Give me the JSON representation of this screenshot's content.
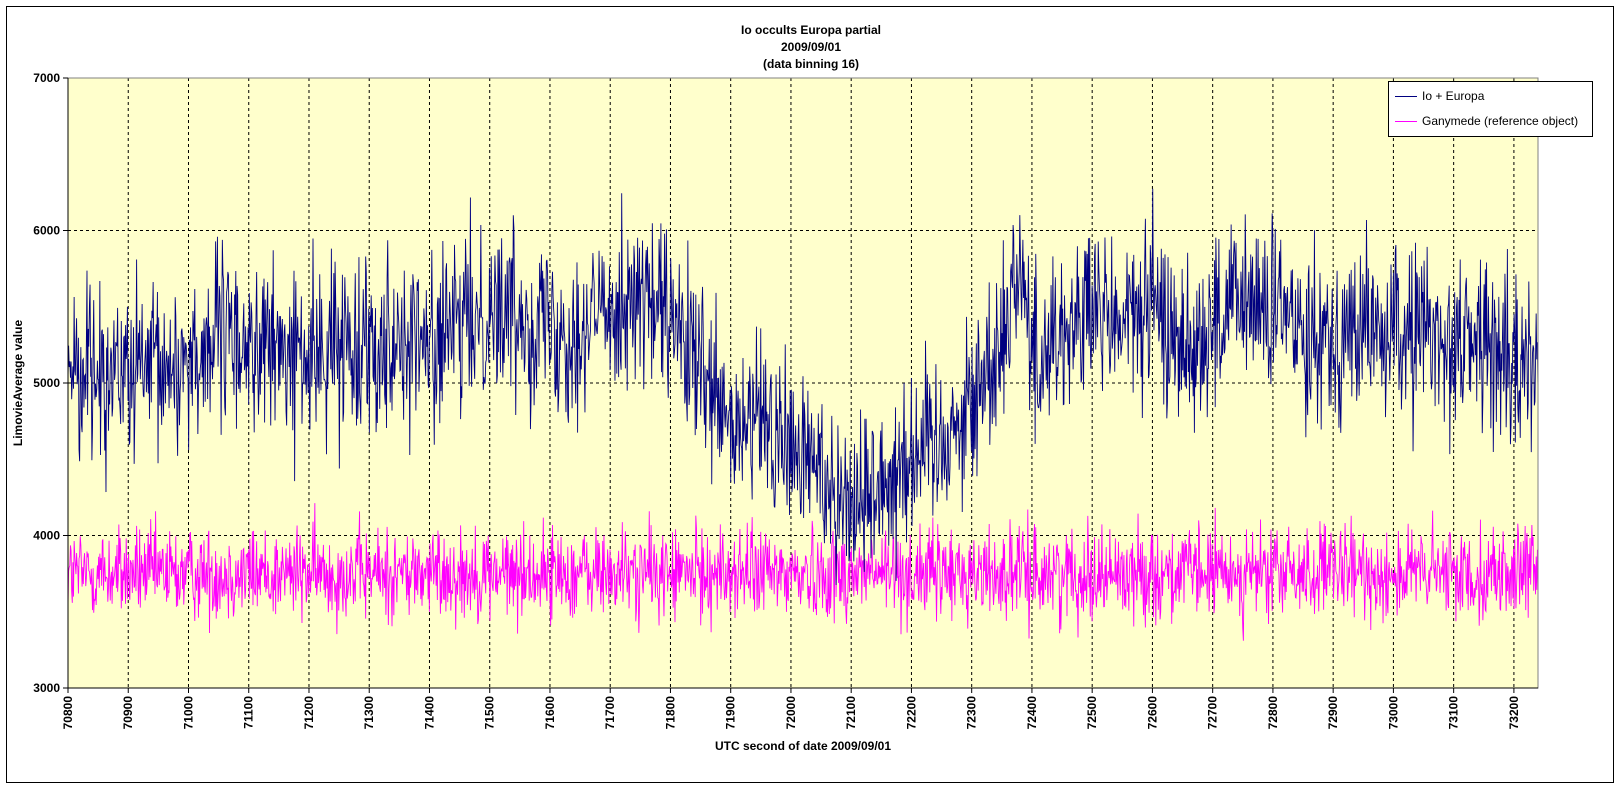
{
  "chart_data": {
    "type": "line",
    "title_lines": [
      "Io occults Europa partial",
      "2009/09/01",
      "(data binning 16)"
    ],
    "xlabel": "UTC second  of date 2009/09/01",
    "ylabel": "LimovieAverage value",
    "xlim": [
      70800,
      73240
    ],
    "ylim": [
      3000,
      7000
    ],
    "x_ticks": [
      70800,
      70900,
      71000,
      71100,
      71200,
      71300,
      71400,
      71500,
      71600,
      71700,
      71800,
      71900,
      72000,
      72100,
      72200,
      72300,
      72400,
      72500,
      72600,
      72700,
      72800,
      72900,
      73000,
      73100,
      73200
    ],
    "x_tick_labels": [
      "70800",
      "70900",
      "71000",
      "71100",
      "71200",
      "71300",
      "71400",
      "71500",
      "71600",
      "71700",
      "71800",
      "71900",
      "72000",
      "72100",
      "72200",
      "72300",
      "72400",
      "72500",
      "72600",
      "72700",
      "72800",
      "72900",
      "73000",
      "73100",
      "73200"
    ],
    "y_ticks": [
      3000,
      4000,
      5000,
      6000,
      7000
    ],
    "y_tick_labels": [
      "3000",
      "4000",
      "5000",
      "6000",
      "7000"
    ],
    "grid": true,
    "legend": "top-right",
    "plot_background": "#ffffcc",
    "series": [
      {
        "name": "Io  + Europa",
        "color": "#000080",
        "x": [
          70800,
          70850,
          70900,
          70950,
          71000,
          71050,
          71100,
          71150,
          71200,
          71250,
          71300,
          71350,
          71400,
          71450,
          71500,
          71550,
          71600,
          71650,
          71700,
          71750,
          71800,
          71850,
          71900,
          71950,
          72000,
          72050,
          72100,
          72150,
          72200,
          72250,
          72300,
          72350,
          72380,
          72400,
          72450,
          72500,
          72550,
          72600,
          72650,
          72700,
          72750,
          72800,
          72850,
          72900,
          72950,
          73000,
          73050,
          73100,
          73150,
          73200,
          73240
        ],
        "y": [
          5150,
          5100,
          5050,
          5050,
          5150,
          5300,
          5250,
          5200,
          5150,
          5250,
          5300,
          5300,
          5250,
          5350,
          5500,
          5450,
          5400,
          5300,
          5550,
          5550,
          5400,
          5050,
          4650,
          4750,
          4550,
          4450,
          4200,
          4350,
          4550,
          4650,
          4850,
          5300,
          5850,
          5150,
          5350,
          5450,
          5400,
          5500,
          5250,
          5350,
          5550,
          5450,
          5400,
          5300,
          5350,
          5300,
          5350,
          5250,
          5300,
          5050,
          5200
        ],
        "noise": 280
      },
      {
        "name": "Ganymede (reference object)",
        "color": "#ff00ff",
        "x": [
          70800,
          73240
        ],
        "y": [
          3750,
          3750
        ],
        "noise": 150
      }
    ]
  }
}
